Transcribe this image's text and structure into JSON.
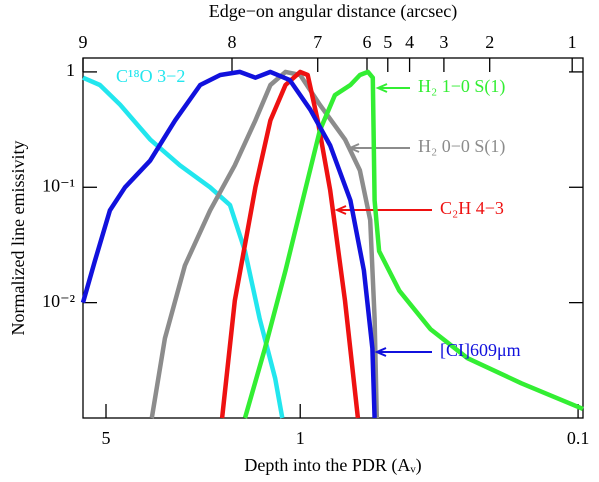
{
  "chart_data": {
    "type": "line",
    "title": "Edge−on angular distance (arcsec)",
    "x_label": "Depth into the PDR (Aᵥ)",
    "y_label": "Normalized line emissivity",
    "x_log": true,
    "y_log": true,
    "grid": false,
    "xlim": [
      6.05,
      0.096
    ],
    "ylim": [
      0.001,
      1.32
    ],
    "xticks": [
      5,
      1,
      0.1
    ],
    "yticks": [
      1,
      {
        "value": 0.1,
        "label": "10⁻¹"
      },
      {
        "value": 0.01,
        "label": "10⁻²"
      }
    ],
    "x2ticks": [
      {
        "value": 6.05,
        "label": "9"
      },
      {
        "value": 1.76,
        "label": "8"
      },
      {
        "value": 0.865,
        "label": "7"
      },
      {
        "value": 0.575,
        "label": "6"
      },
      {
        "value": 0.484,
        "label": "5"
      },
      {
        "value": 0.404,
        "label": "4"
      },
      {
        "value": 0.304,
        "label": "3"
      },
      {
        "value": 0.208,
        "label": "2"
      },
      {
        "value": 0.105,
        "label": "1"
      }
    ],
    "series": [
      {
        "name": "C¹⁸O 3−2",
        "color": "#22e6ee",
        "x": [
          6.05,
          5.26,
          4.45,
          3.47,
          2.71,
          2.11,
          1.79,
          1.58,
          1.4,
          1.23,
          1.16
        ],
        "values": [
          0.89,
          0.77,
          0.52,
          0.26,
          0.155,
          0.1,
          0.07,
          0.028,
          0.0073,
          0.0022,
          0.001
        ]
      },
      {
        "name": "H₂ 0−0 S(1)",
        "color": "#8c8c8c",
        "x": [
          3.42,
          3.07,
          2.6,
          2.11,
          1.72,
          1.45,
          1.28,
          1.13,
          1.0,
          0.85,
          0.69,
          0.61,
          0.56,
          0.54,
          0.53
        ],
        "values": [
          0.001,
          0.0049,
          0.021,
          0.063,
          0.155,
          0.38,
          0.77,
          1,
          0.94,
          0.52,
          0.26,
          0.14,
          0.052,
          0.0073,
          0.001
        ]
      },
      {
        "name": "C₂H 4−3",
        "color": "#ee1111",
        "x": [
          1.91,
          1.72,
          1.45,
          1.28,
          1.13,
          1.0,
          0.94,
          0.865,
          0.78,
          0.69,
          0.62
        ],
        "values": [
          0.001,
          0.0104,
          0.1,
          0.38,
          0.77,
          1,
          0.94,
          0.38,
          0.094,
          0.0104,
          0.001
        ]
      },
      {
        "name": "H₂ 1−0 S(1)",
        "color": "#33ee33",
        "x": [
          1.58,
          1.34,
          1.13,
          0.96,
          0.85,
          0.75,
          0.66,
          0.61,
          0.57,
          0.548,
          0.54,
          0.52,
          0.44,
          0.34,
          0.25,
          0.16,
          0.096
        ],
        "values": [
          0.001,
          0.004,
          0.019,
          0.094,
          0.31,
          0.63,
          0.77,
          0.94,
          1,
          0.89,
          0.077,
          0.028,
          0.0127,
          0.0059,
          0.0033,
          0.002,
          0.0012
        ]
      },
      {
        "name": "[CI]609μm",
        "color": "#1111dd",
        "x": [
          6.05,
          5.48,
          4.84,
          4.27,
          3.47,
          2.82,
          2.29,
          1.94,
          1.65,
          1.45,
          1.28,
          1.09,
          0.92,
          0.78,
          0.66,
          0.59,
          0.55,
          0.54
        ],
        "values": [
          0.01,
          0.023,
          0.063,
          0.1,
          0.17,
          0.38,
          0.77,
          0.94,
          1,
          0.89,
          1,
          0.85,
          0.47,
          0.23,
          0.077,
          0.019,
          0.004,
          0.001
        ]
      }
    ]
  }
}
